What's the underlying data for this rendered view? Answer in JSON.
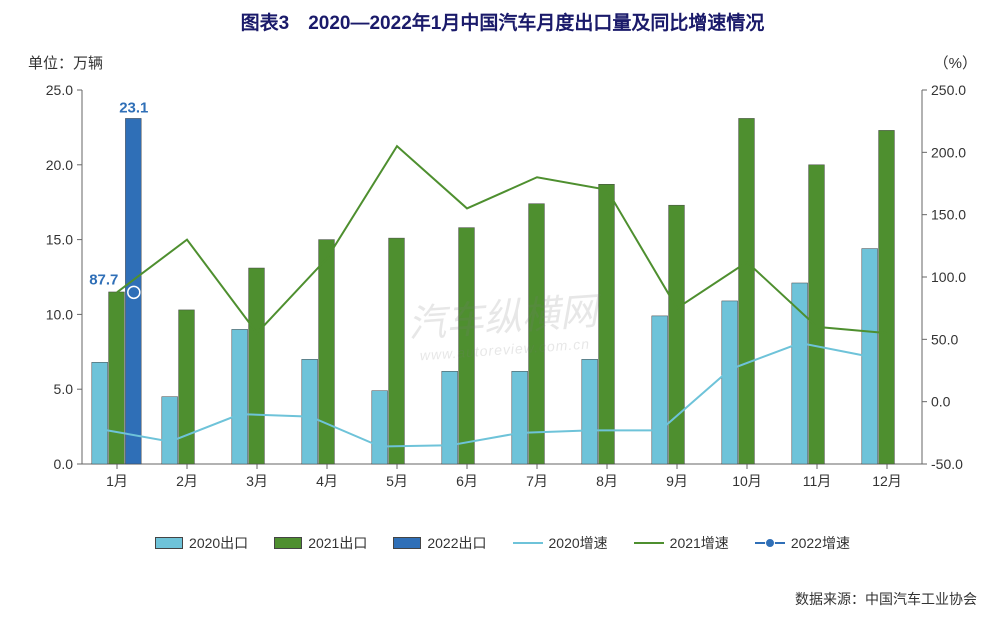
{
  "title": "图表3　2020—2022年1月中国汽车月度出口量及同比增速情况",
  "unit_left": "单位：万辆",
  "unit_right": "（%）",
  "source": "数据来源：中国汽车工业协会",
  "watermark": "汽车纵横网",
  "watermark_sub": "www.autoreview.com.cn",
  "chart": {
    "type": "bar-line-combo",
    "categories": [
      "1月",
      "2月",
      "3月",
      "4月",
      "5月",
      "6月",
      "7月",
      "8月",
      "9月",
      "10月",
      "11月",
      "12月"
    ],
    "left_axis": {
      "min": 0,
      "max": 25,
      "step": 5,
      "decimals": 1
    },
    "right_axis": {
      "min": -50,
      "max": 250,
      "step": 50,
      "decimals": 1
    },
    "bars_2020": [
      6.8,
      4.5,
      9.0,
      7.0,
      4.9,
      6.2,
      6.2,
      7.0,
      9.9,
      10.9,
      12.1,
      14.4
    ],
    "bars_2021": [
      11.5,
      10.3,
      13.1,
      15.0,
      15.1,
      15.8,
      17.4,
      18.7,
      17.3,
      23.1,
      20.0,
      22.3
    ],
    "bars_2022": [
      23.1
    ],
    "line_2020": [
      -22,
      -32,
      -10,
      -12,
      -36,
      -35,
      -25,
      -23,
      -23,
      26,
      47,
      36
    ],
    "line_2021": [
      87.7,
      130,
      55,
      115,
      205,
      155,
      180,
      170,
      75,
      112,
      60,
      55
    ],
    "line_2022": [
      87.7
    ],
    "label_2022_bar": "23.1",
    "label_2022_line": "87.7",
    "colors": {
      "bar2020": "#6ec3d9",
      "bar2021": "#4e8f2f",
      "bar2022": "#2f6fb7",
      "line2020": "#6ec3d9",
      "line2021": "#4e8f2f",
      "line2022": "#2f6fb7",
      "axis": "#666666",
      "tick_text": "#333333",
      "bar_stroke": "#444444"
    },
    "bar_group_width": 0.72,
    "stroke_width_line": 2,
    "marker_radius": 6,
    "font_axis": 14,
    "font_label": 15
  },
  "legend": {
    "items": [
      {
        "kind": "bar",
        "color": "#6ec3d9",
        "label": "2020出口"
      },
      {
        "kind": "bar",
        "color": "#4e8f2f",
        "label": "2021出口"
      },
      {
        "kind": "bar",
        "color": "#2f6fb7",
        "label": "2022出口"
      },
      {
        "kind": "line",
        "color": "#6ec3d9",
        "label": "2020增速"
      },
      {
        "kind": "line",
        "color": "#4e8f2f",
        "label": "2021增速"
      },
      {
        "kind": "linedot",
        "color": "#2f6fb7",
        "label": "2022增速"
      }
    ]
  }
}
